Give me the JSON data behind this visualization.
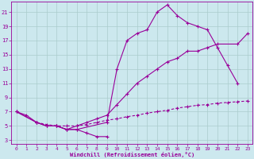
{
  "xlabel": "Windchill (Refroidissement éolien,°C)",
  "bg_color": "#cce8ee",
  "line_color": "#990099",
  "grid_color": "#aacccc",
  "xlim": [
    -0.5,
    23.5
  ],
  "ylim": [
    2.5,
    22.5
  ],
  "xticks": [
    0,
    1,
    2,
    3,
    4,
    5,
    6,
    7,
    8,
    9,
    10,
    11,
    12,
    13,
    14,
    15,
    16,
    17,
    18,
    19,
    20,
    21,
    22,
    23
  ],
  "yticks": [
    3,
    5,
    7,
    9,
    11,
    13,
    15,
    17,
    19,
    21
  ],
  "line_top_x": [
    0,
    2,
    3,
    4,
    5,
    6,
    9,
    10,
    11,
    12,
    13,
    14,
    15,
    16,
    17,
    18,
    19,
    20,
    21,
    22
  ],
  "line_top_y": [
    7.0,
    5.5,
    5.0,
    5.0,
    4.5,
    4.5,
    5.5,
    13,
    17,
    18,
    18.5,
    21,
    22,
    20.5,
    19.5,
    19,
    18.5,
    16,
    13.5,
    11
  ],
  "line_mid_x": [
    0,
    2,
    3,
    4,
    5,
    6,
    7,
    8,
    9,
    10,
    11,
    12,
    13,
    14,
    15,
    16,
    17,
    18,
    19,
    20,
    22,
    23
  ],
  "line_mid_y": [
    7.0,
    5.5,
    5.0,
    5.0,
    4.5,
    5.0,
    5.5,
    6.0,
    6.5,
    8.0,
    9.5,
    11,
    12,
    13,
    14,
    14.5,
    15.5,
    15.5,
    16,
    16.5,
    16.5,
    18
  ],
  "line_bot_x": [
    0,
    1,
    2,
    3,
    4,
    5,
    6,
    7,
    8,
    9
  ],
  "line_bot_y": [
    7.0,
    6.5,
    5.5,
    5.0,
    5.0,
    4.5,
    4.5,
    4.0,
    3.5,
    3.5
  ],
  "line_flat_x": [
    2,
    3,
    4,
    5,
    6,
    7,
    8,
    9,
    10,
    11,
    12,
    13,
    14,
    15,
    16,
    17,
    18,
    19,
    20,
    21,
    22,
    23
  ],
  "line_flat_y": [
    5.5,
    5.2,
    5.0,
    5.0,
    5.0,
    5.2,
    5.5,
    5.8,
    6.0,
    6.3,
    6.5,
    6.8,
    7.0,
    7.2,
    7.5,
    7.7,
    7.9,
    8.0,
    8.2,
    8.3,
    8.4,
    8.5
  ]
}
